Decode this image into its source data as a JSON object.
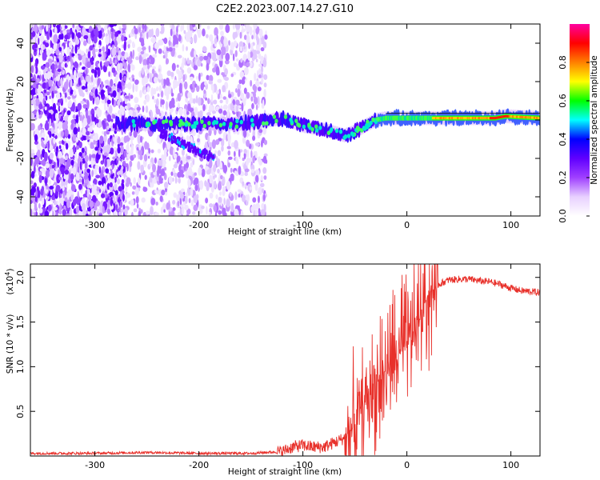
{
  "title": "C2E2.2023.007.14.27.G10",
  "chart_data": [
    {
      "type": "heatmap",
      "xlabel": "Height of straight line (km)",
      "ylabel": "Frequency (Hz)",
      "xlim": [
        -362,
        128
      ],
      "ylim": [
        -50,
        50
      ],
      "xticks": [
        -300,
        -200,
        -100,
        0,
        100
      ],
      "yticks": [
        -40,
        -20,
        0,
        20,
        40
      ],
      "colorbar": {
        "label": "Normalized spectral amplitude",
        "range": [
          0.0,
          1.0
        ],
        "ticks": [
          0.0,
          0.2,
          0.4,
          0.6,
          0.8
        ],
        "colormap": [
          "#ffffff",
          "#e8d0ff",
          "#a040ff",
          "#6000ff",
          "#0000ff",
          "#00ffff",
          "#00ff00",
          "#ffff00",
          "#ff8000",
          "#ff0000",
          "#ff00a0"
        ]
      },
      "ridge": {
        "x": [
          -270,
          -240,
          -200,
          -160,
          -130,
          -120,
          -100,
          -80,
          -60,
          -50,
          -40,
          -30,
          -20,
          0,
          20,
          60,
          85,
          95,
          128
        ],
        "y": [
          -2,
          -2,
          -2,
          -2,
          0,
          1,
          -3,
          -5,
          -8,
          -6,
          -3,
          0,
          1,
          1,
          1,
          1,
          1,
          2,
          1
        ]
      }
    },
    {
      "type": "line",
      "xlabel": "Height of straight line (km)",
      "ylabel": "SNR (10 * v/v)",
      "yscale_label": "(x10",
      "yscale_exp": "4",
      "yscale_close": ")",
      "xlim": [
        -362,
        128
      ],
      "ylim": [
        0,
        2.15
      ],
      "xticks": [
        -300,
        -200,
        -100,
        0,
        100
      ],
      "yticks": [
        0.5,
        1.0,
        1.5,
        2.0
      ],
      "color": "#e8302a",
      "series": [
        {
          "x": [
            -362,
            -300,
            -250,
            -200,
            -150,
            -120,
            -110,
            -100,
            -90,
            -80,
            -70,
            -60,
            -50,
            -40,
            -30,
            -20,
            -10,
            0,
            10,
            20,
            30,
            40,
            50,
            60,
            70,
            80,
            90,
            100,
            110,
            120,
            128
          ],
          "y": [
            0.03,
            0.03,
            0.04,
            0.03,
            0.03,
            0.05,
            0.1,
            0.12,
            0.1,
            0.1,
            0.15,
            0.2,
            0.35,
            0.6,
            0.8,
            0.95,
            1.1,
            1.25,
            1.5,
            1.8,
            1.92,
            1.97,
            1.98,
            1.98,
            1.96,
            1.95,
            1.92,
            1.88,
            1.85,
            1.84,
            1.83
          ]
        }
      ]
    }
  ]
}
